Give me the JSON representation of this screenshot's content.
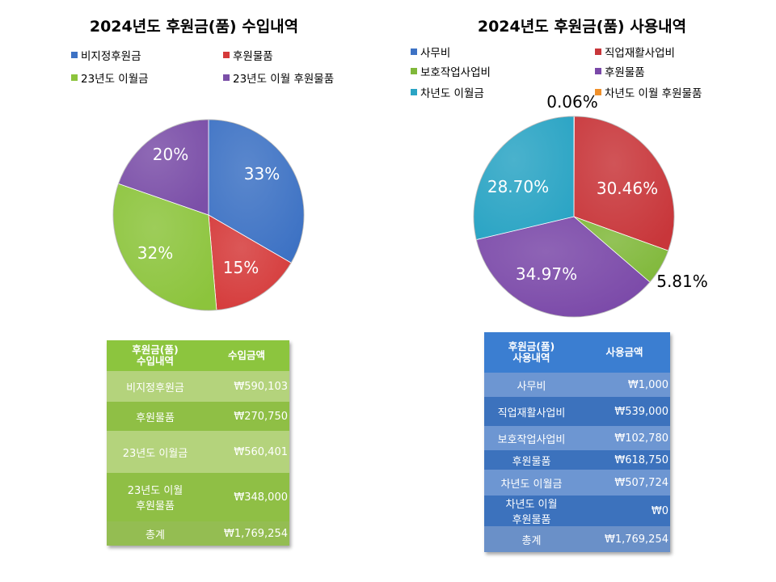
{
  "chart_data": [
    {
      "type": "pie",
      "title": "2024년도 후원금(품) 수입내역",
      "categories": [
        "비지정후원금",
        "후원물품",
        "23년도 이월금",
        "23년도 이월 후원물품"
      ],
      "values": [
        590103,
        270750,
        560401,
        348000
      ],
      "data_labels": [
        "33%",
        "15%",
        "32%",
        "20%"
      ],
      "colors": [
        "#3d72c4",
        "#d53a3a",
        "#8cc43c",
        "#7b4fa8"
      ],
      "legend_position": "top"
    },
    {
      "type": "pie",
      "title": "2024년도 후원금(품) 사용내역",
      "categories": [
        "사무비",
        "직업재활사업비",
        "보호작업사업비",
        "후원물품",
        "차년도 이월금",
        "차년도 이월 후원물품"
      ],
      "values": [
        1000,
        539000,
        102780,
        618750,
        507724,
        0
      ],
      "data_labels": [
        "0.06%",
        "30.46%",
        "5.81%",
        "34.97%",
        "28.70%",
        ""
      ],
      "colors": [
        "#3d72c4",
        "#c8363a",
        "#80b83a",
        "#7a48a8",
        "#2aa4c4",
        "#f0902a"
      ],
      "legend_position": "top"
    }
  ],
  "tables": {
    "income": {
      "headers": [
        [
          "후원금(품)",
          "수입내역"
        ],
        [
          "수입금액"
        ]
      ],
      "rows": [
        {
          "name": [
            "비지정후원금"
          ],
          "amount": "₩590,103"
        },
        {
          "name": [
            "후원물품"
          ],
          "amount": "₩270,750"
        },
        {
          "name": [
            "23년도 이월금"
          ],
          "amount": "₩560,401"
        },
        {
          "name": [
            "23년도 이월",
            "후원물품"
          ],
          "amount": "₩348,000"
        },
        {
          "name": [
            "총계"
          ],
          "amount": "₩1,769,254"
        }
      ]
    },
    "usage": {
      "headers": [
        [
          "후원금(품)",
          "사용내역"
        ],
        [
          "사용금액"
        ]
      ],
      "rows": [
        {
          "name": [
            "사무비"
          ],
          "amount": "₩1,000"
        },
        {
          "name": [
            "직업재활사업비"
          ],
          "amount": "₩539,000"
        },
        {
          "name": [
            "보호작업사업비"
          ],
          "amount": "₩102,780"
        },
        {
          "name": [
            "후원물품"
          ],
          "amount": "₩618,750"
        },
        {
          "name": [
            "차년도 이월금"
          ],
          "amount": "₩507,724"
        },
        {
          "name": [
            "차년도 이월",
            "후원물품"
          ],
          "amount": "₩0"
        },
        {
          "name": [
            "총계"
          ],
          "amount": "₩1,769,254"
        }
      ]
    }
  }
}
